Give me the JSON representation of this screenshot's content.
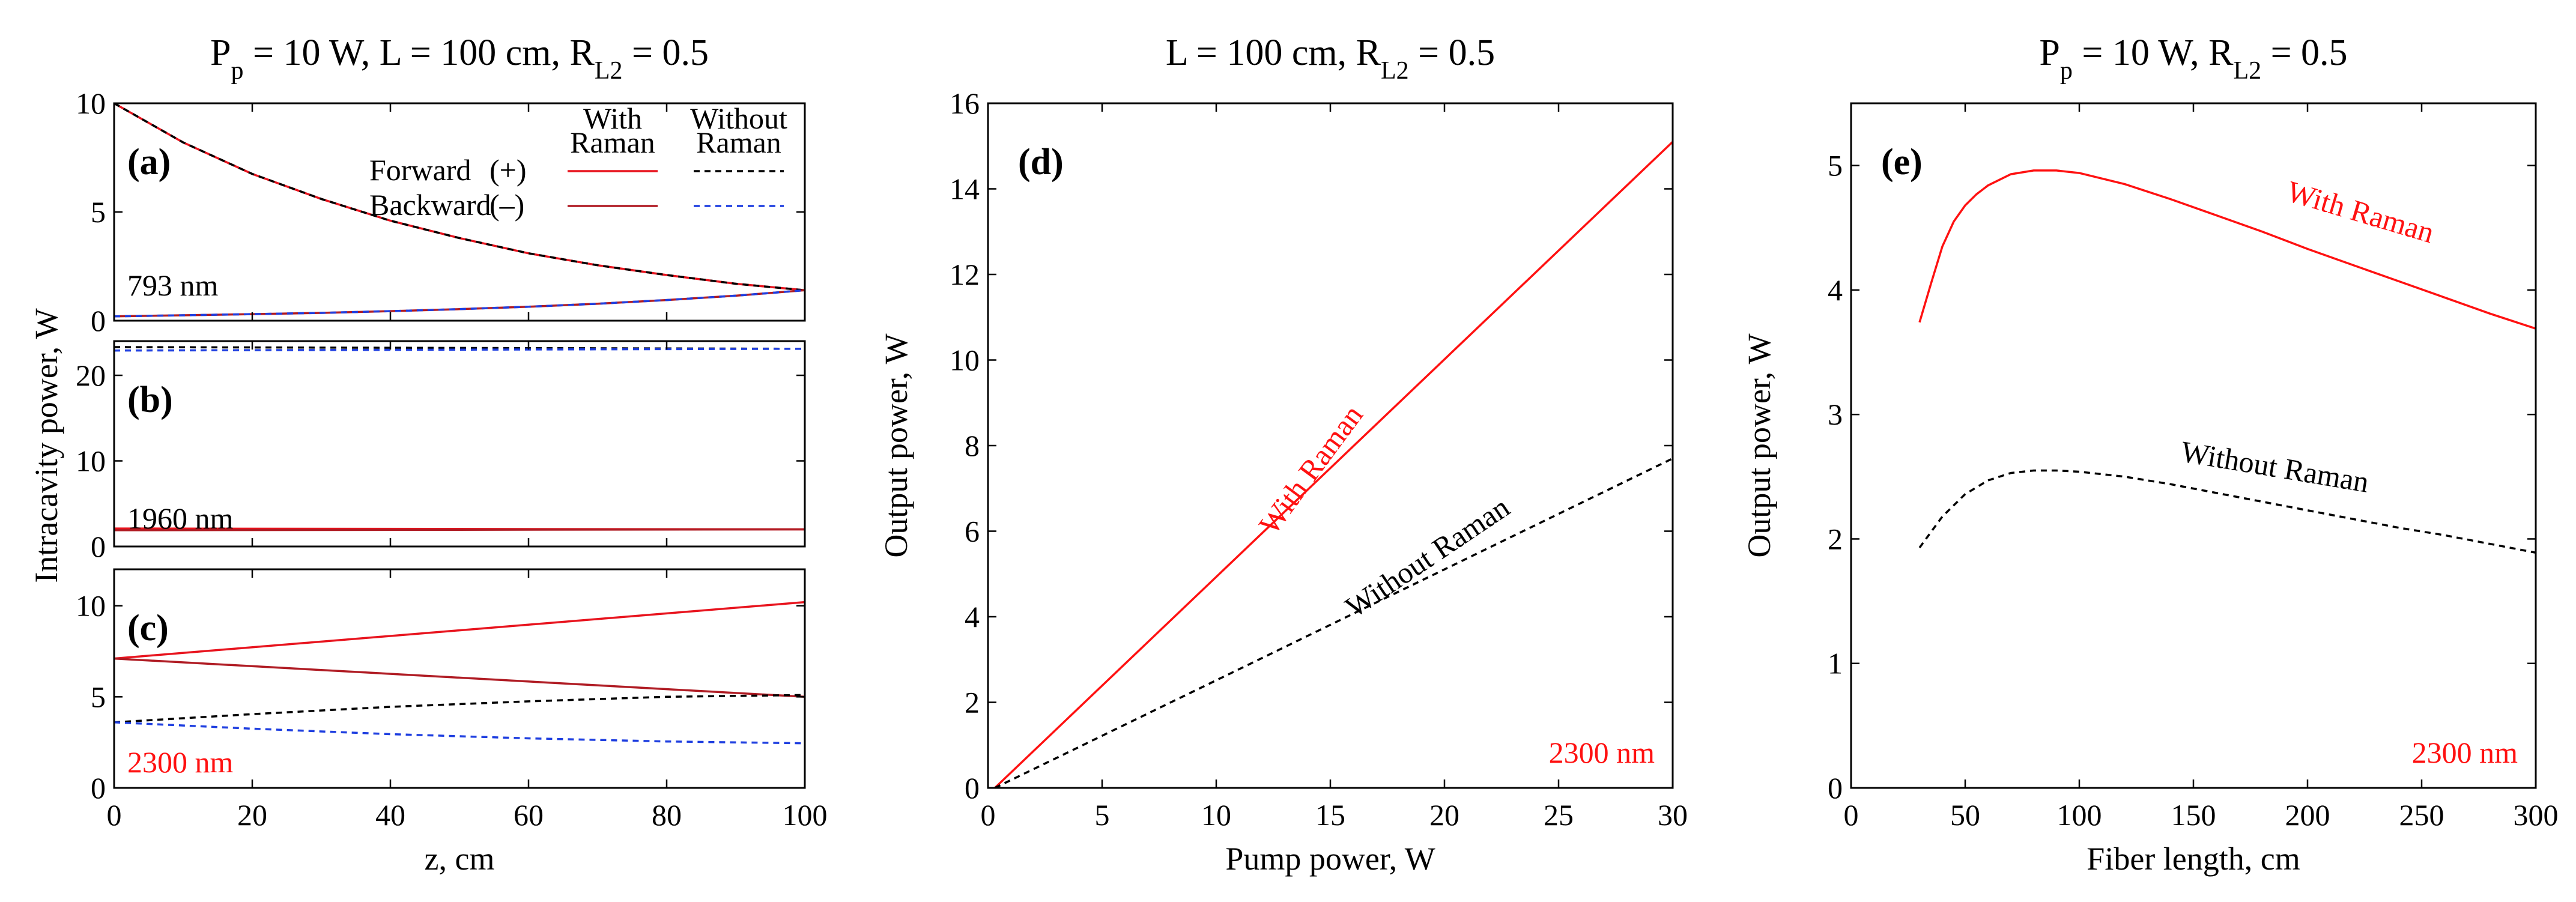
{
  "chart_data": [
    {
      "id": "a",
      "type": "line",
      "panel_label": "(a)",
      "title_parts": [
        "P",
        "p",
        " = 10 W, L = 100 cm, R",
        "L2",
        " = 0.5"
      ],
      "wavelength_label": "793 nm",
      "ylim": [
        0,
        10
      ],
      "yticks": [
        0,
        5,
        10
      ],
      "xlim": [
        0,
        100
      ],
      "legend": {
        "col_with": [
          "With",
          "Raman"
        ],
        "col_without": [
          "Without",
          "Raman"
        ],
        "rows": [
          "Forward",
          "(+)",
          "Backward",
          "(–)"
        ]
      },
      "series": [
        {
          "name": "Forward with Raman",
          "color": "#e8141e",
          "dash": "",
          "x": [
            0,
            10,
            20,
            30,
            40,
            50,
            60,
            70,
            80,
            90,
            100
          ],
          "y": [
            10.0,
            8.2,
            6.75,
            5.6,
            4.6,
            3.8,
            3.1,
            2.55,
            2.1,
            1.7,
            1.4
          ]
        },
        {
          "name": "Forward without Raman",
          "color": "#000000",
          "dash": "10,8",
          "x": [
            0,
            10,
            20,
            30,
            40,
            50,
            60,
            70,
            80,
            90,
            100
          ],
          "y": [
            10.0,
            8.2,
            6.75,
            5.6,
            4.6,
            3.8,
            3.1,
            2.55,
            2.1,
            1.7,
            1.4
          ]
        },
        {
          "name": "Backward with Raman",
          "color": "#b01c24",
          "dash": "",
          "x": [
            0,
            10,
            20,
            30,
            40,
            50,
            60,
            70,
            80,
            90,
            100
          ],
          "y": [
            0.2,
            0.25,
            0.3,
            0.36,
            0.44,
            0.53,
            0.64,
            0.78,
            0.95,
            1.15,
            1.4
          ]
        },
        {
          "name": "Backward without Raman",
          "color": "#1f3fe0",
          "dash": "10,8",
          "x": [
            0,
            10,
            20,
            30,
            40,
            50,
            60,
            70,
            80,
            90,
            100
          ],
          "y": [
            0.2,
            0.25,
            0.3,
            0.36,
            0.44,
            0.53,
            0.64,
            0.78,
            0.95,
            1.15,
            1.4
          ]
        }
      ]
    },
    {
      "id": "b",
      "type": "line",
      "panel_label": "(b)",
      "wavelength_label": "1960 nm",
      "ylim": [
        0,
        24
      ],
      "yticks": [
        0,
        10,
        20
      ],
      "xlim": [
        0,
        100
      ],
      "series": [
        {
          "name": "Forward without Raman",
          "color": "#000000",
          "dash": "10,8",
          "x": [
            0,
            100
          ],
          "y": [
            23.3,
            23.1
          ]
        },
        {
          "name": "Backward without Raman",
          "color": "#1f3fe0",
          "dash": "10,8",
          "x": [
            0,
            100
          ],
          "y": [
            22.9,
            23.1
          ]
        },
        {
          "name": "Forward with Raman",
          "color": "#e8141e",
          "dash": "",
          "x": [
            0,
            100
          ],
          "y": [
            2.1,
            2.0
          ]
        },
        {
          "name": "Backward with Raman",
          "color": "#b01c24",
          "dash": "",
          "x": [
            0,
            100
          ],
          "y": [
            1.9,
            2.0
          ]
        }
      ]
    },
    {
      "id": "c",
      "type": "line",
      "panel_label": "(c)",
      "wavelength_label": "2300 nm",
      "xlabel": "z, cm",
      "ylim": [
        0,
        12
      ],
      "yticks": [
        0,
        5,
        10
      ],
      "xlim": [
        0,
        100
      ],
      "xticks": [
        0,
        20,
        40,
        60,
        80,
        100
      ],
      "series": [
        {
          "name": "Forward with Raman",
          "color": "#e8141e",
          "dash": "",
          "x": [
            0,
            100
          ],
          "y": [
            7.1,
            10.2
          ]
        },
        {
          "name": "Backward with Raman",
          "color": "#b01c24",
          "dash": "",
          "x": [
            0,
            100
          ],
          "y": [
            7.1,
            5.0
          ]
        },
        {
          "name": "Forward without Raman",
          "color": "#000000",
          "dash": "10,8",
          "x": [
            0,
            20,
            40,
            60,
            80,
            100
          ],
          "y": [
            3.6,
            4.05,
            4.45,
            4.75,
            5.0,
            5.1
          ]
        },
        {
          "name": "Backward without Raman",
          "color": "#1f3fe0",
          "dash": "10,8",
          "x": [
            0,
            20,
            40,
            60,
            80,
            100
          ],
          "y": [
            3.6,
            3.25,
            2.95,
            2.72,
            2.55,
            2.45
          ]
        }
      ]
    },
    {
      "id": "d",
      "type": "line",
      "panel_label": "(d)",
      "title_parts": [
        "L = 100 cm, R",
        "L2",
        " = 0.5"
      ],
      "wavelength_label": "2300 nm",
      "xlabel": "Pump power, W",
      "ylabel": "Output power, W",
      "xlim": [
        0,
        30
      ],
      "ylim": [
        0,
        16
      ],
      "xticks": [
        0,
        5,
        10,
        15,
        20,
        25,
        30
      ],
      "yticks": [
        0,
        2,
        4,
        6,
        8,
        10,
        12,
        14,
        16
      ],
      "series": [
        {
          "name": "With Raman",
          "label": "With Raman",
          "color": "#ff1111",
          "dash": "",
          "x": [
            0.3,
            30
          ],
          "y": [
            0,
            15.1
          ]
        },
        {
          "name": "Without Raman",
          "label": "Without Raman",
          "color": "#000000",
          "dash": "10,8",
          "x": [
            0.3,
            30
          ],
          "y": [
            0,
            7.7
          ]
        }
      ]
    },
    {
      "id": "e",
      "type": "line",
      "panel_label": "(e)",
      "title_parts": [
        "P",
        "p",
        " = 10 W, R",
        "L2",
        " = 0.5"
      ],
      "wavelength_label": "2300 nm",
      "xlabel": "Fiber length, cm",
      "ylabel": "Output power, W",
      "xlim": [
        0,
        300
      ],
      "ylim": [
        0,
        5.5
      ],
      "xticks": [
        0,
        50,
        100,
        150,
        200,
        250,
        300
      ],
      "yticks": [
        0,
        1,
        2,
        3,
        4,
        5
      ],
      "series": [
        {
          "name": "With Raman",
          "label": "With Raman",
          "color": "#ff1111",
          "dash": "",
          "x": [
            30,
            35,
            40,
            45,
            50,
            55,
            60,
            70,
            80,
            90,
            100,
            120,
            140,
            160,
            180,
            200,
            220,
            240,
            260,
            280,
            300
          ],
          "y": [
            3.74,
            4.05,
            4.35,
            4.55,
            4.68,
            4.77,
            4.84,
            4.93,
            4.96,
            4.96,
            4.94,
            4.85,
            4.73,
            4.6,
            4.47,
            4.33,
            4.2,
            4.07,
            3.94,
            3.81,
            3.69
          ]
        },
        {
          "name": "Without Raman",
          "label": "Without Raman",
          "color": "#000000",
          "dash": "10,8",
          "x": [
            30,
            40,
            50,
            60,
            70,
            80,
            90,
            100,
            120,
            140,
            160,
            180,
            200,
            220,
            240,
            260,
            280,
            300
          ],
          "y": [
            1.93,
            2.18,
            2.36,
            2.47,
            2.53,
            2.55,
            2.55,
            2.54,
            2.5,
            2.44,
            2.37,
            2.3,
            2.23,
            2.16,
            2.09,
            2.03,
            1.96,
            1.89
          ]
        }
      ]
    }
  ],
  "shared": {
    "ylabel_left": "Intracavity power, W"
  }
}
